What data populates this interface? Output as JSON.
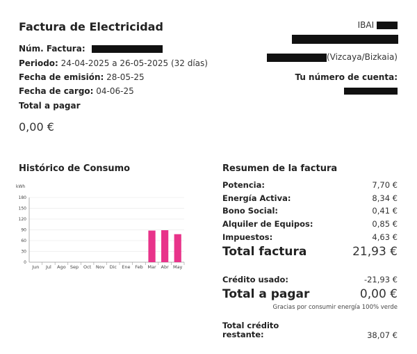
{
  "header": {
    "title": "Factura de Electricidad",
    "invoice_label": "Núm. Factura:",
    "period_label": "Periodo:",
    "period_value": "24-04-2025 a 26-05-2025 (32 días)",
    "issue_label": "Fecha de emisión:",
    "issue_value": "28-05-25",
    "charge_label": "Fecha de cargo:",
    "charge_value": "04-06-25",
    "total_label": "Total a pagar",
    "total_value": "0,00 €"
  },
  "customer": {
    "name_prefix": "IBAI",
    "region": "(Vizcaya/Bizkaia)",
    "account_label": "Tu número de cuenta:"
  },
  "history": {
    "title": "Histórico de Consumo"
  },
  "chart_data": {
    "type": "bar",
    "ylabel": "kWh",
    "ylim": [
      0,
      180
    ],
    "yticks": [
      "0",
      "30",
      "60",
      "90",
      "120",
      "150",
      "180"
    ],
    "categories": [
      "Jun",
      "Jul",
      "Ago",
      "Sep",
      "Oct",
      "Nov",
      "Dic",
      "Ene",
      "Feb",
      "Mar",
      "Abr",
      "May"
    ],
    "values": [
      0,
      0,
      0,
      0,
      0,
      0,
      0,
      0,
      0,
      88,
      89,
      78
    ],
    "bar_color": "#e8338a",
    "grid": true
  },
  "summary": {
    "title": "Resumen de la factura",
    "rows": [
      {
        "label": "Potencia:",
        "value": "7,70 €"
      },
      {
        "label": "Energía Activa:",
        "value": "8,34 €"
      },
      {
        "label": "Bono Social:",
        "value": "0,41 €"
      },
      {
        "label": "Alquiler de Equipos:",
        "value": "0,85 €"
      },
      {
        "label": "Impuestos:",
        "value": "4,63 €"
      }
    ],
    "total_label": "Total factura",
    "total_value": "21,93 €",
    "credit_label": "Crédito usado:",
    "credit_value": "-21,93 €",
    "pay_label": "Total a pagar",
    "pay_value": "0,00 €",
    "note": "Gracias por consumir energía 100% verde",
    "remaining_label_1": "Total crédito",
    "remaining_label_2": "restante:",
    "remaining_value": "38,07 €"
  }
}
